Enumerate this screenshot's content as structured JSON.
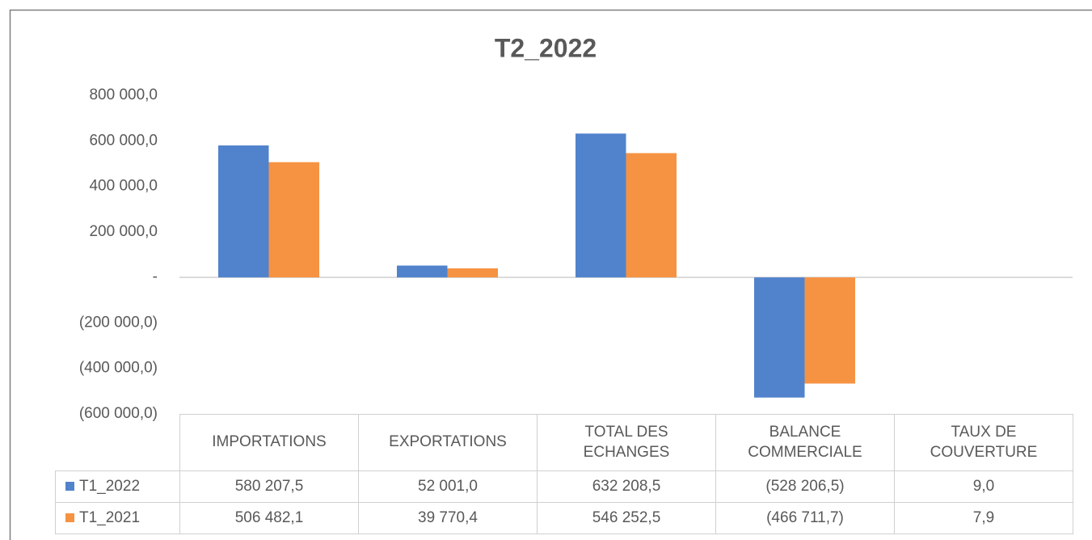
{
  "chart_data": {
    "type": "bar",
    "title": "T2_2022",
    "categories": [
      "IMPORTATIONS",
      "EXPORTATIONS",
      "TOTAL DES ECHANGES",
      "BALANCE COMMERCIALE",
      "TAUX DE COUVERTURE"
    ],
    "series": [
      {
        "name": "T1_2022",
        "color": "#5183cc",
        "values": [
          580207.5,
          52001.0,
          632208.5,
          -528206.5,
          9.0
        ],
        "value_labels": [
          "580 207,5",
          "52 001,0",
          "632 208,5",
          "(528 206,5)",
          "9,0"
        ]
      },
      {
        "name": "T1_2021",
        "color": "#f59343",
        "values": [
          506482.1,
          39770.4,
          546252.5,
          -466711.7,
          7.9
        ],
        "value_labels": [
          "506 482,1",
          "39 770,4",
          "546 252,5",
          "(466 711,7)",
          "7,9"
        ]
      }
    ],
    "ylim": [
      -600000,
      800000
    ],
    "yticks": [
      {
        "value": -600000,
        "label": "(600 000,0)"
      },
      {
        "value": -400000,
        "label": "(400 000,0)"
      },
      {
        "value": -200000,
        "label": "(200 000,0)"
      },
      {
        "value": 0,
        "label": "-"
      },
      {
        "value": 200000,
        "label": "200 000,0"
      },
      {
        "value": 400000,
        "label": "400 000,0"
      },
      {
        "value": 600000,
        "label": "600 000,0"
      },
      {
        "value": 800000,
        "label": "800 000,0"
      }
    ],
    "legend": "table"
  }
}
